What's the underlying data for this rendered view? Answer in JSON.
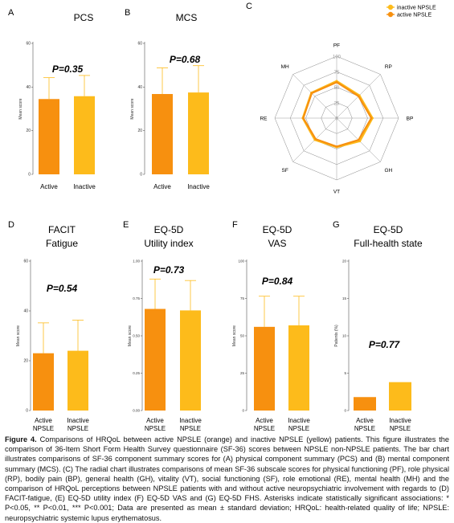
{
  "colors": {
    "active": "#F7900F",
    "inactive": "#FDBB1B",
    "axis": "#555555",
    "grid": "#bbbbbb",
    "error": "#FDBB1B"
  },
  "chart_data": [
    {
      "panel": "A",
      "type": "bar",
      "title": "PCS",
      "ylabel": "Mean score",
      "ylim": [
        0,
        60
      ],
      "yticks": [
        0,
        20,
        40,
        60
      ],
      "categories": [
        "Active",
        "Inactive"
      ],
      "values": [
        34.5,
        35.8
      ],
      "errors": [
        9.8,
        9.5
      ],
      "pvalue": "P=0.35"
    },
    {
      "panel": "B",
      "type": "bar",
      "title": "MCS",
      "ylabel": "Mean score",
      "ylim": [
        0,
        60
      ],
      "yticks": [
        0,
        20,
        40,
        60
      ],
      "categories": [
        "Active",
        "Inactive"
      ],
      "values": [
        36.8,
        37.5
      ],
      "errors": [
        12.0,
        12.3
      ],
      "pvalue": "P=0.68"
    },
    {
      "panel": "C",
      "type": "radar",
      "axes": [
        "PF",
        "RP",
        "BP",
        "GH",
        "VT",
        "SF",
        "RE",
        "MH"
      ],
      "rticks": [
        0,
        25,
        50,
        75,
        100
      ],
      "series": [
        {
          "name": "inactive NPSLE",
          "values": [
            60,
            52,
            58,
            53,
            47,
            50,
            55,
            58
          ]
        },
        {
          "name": "active NPSLE",
          "values": [
            58,
            50,
            56,
            50,
            46,
            48,
            54,
            57
          ]
        }
      ]
    },
    {
      "panel": "D",
      "type": "bar",
      "title": [
        "FACIT",
        "Fatigue"
      ],
      "ylabel": "Mean score",
      "ylim": [
        0,
        60
      ],
      "yticks": [
        0,
        20,
        40,
        60
      ],
      "categories": [
        [
          "Active",
          "NPSLE"
        ],
        [
          "Inactive",
          "NPSLE"
        ]
      ],
      "values": [
        23.0,
        24.0
      ],
      "errors": [
        12.2,
        12.3
      ],
      "pvalue": "P=0.54"
    },
    {
      "panel": "E",
      "type": "bar",
      "title": [
        "EQ-5D",
        "Utility index"
      ],
      "ylabel": "Mean score",
      "ylim": [
        0,
        1
      ],
      "yticks": [
        "0.00",
        "0.25",
        "0.50",
        "0.75",
        "1.00"
      ],
      "categories": [
        [
          "Active",
          "NPSLE"
        ],
        [
          "Inactive",
          "NPSLE"
        ]
      ],
      "values": [
        0.68,
        0.67
      ],
      "errors": [
        0.2,
        0.2
      ],
      "pvalue": "P=0.73"
    },
    {
      "panel": "F",
      "type": "bar",
      "title": [
        "EQ-5D",
        "VAS"
      ],
      "ylabel": "Mean score",
      "ylim": [
        0,
        100
      ],
      "yticks": [
        0,
        25,
        50,
        75,
        100
      ],
      "categories": [
        [
          "Active",
          "NPSLE"
        ],
        [
          "Inactive",
          "NPSLE"
        ]
      ],
      "values": [
        56,
        57
      ],
      "errors": [
        20.5,
        19.5
      ],
      "pvalue": "P=0.84"
    },
    {
      "panel": "G",
      "type": "bar",
      "title": [
        "EQ-5D",
        "Full-health state"
      ],
      "ylabel": "Patients (%)",
      "ylim": [
        0,
        20
      ],
      "yticks": [
        0,
        5,
        10,
        15,
        20
      ],
      "categories": [
        [
          "Active",
          "NPSLE"
        ],
        [
          "Inactive",
          "NPSLE"
        ]
      ],
      "values": [
        1.8,
        3.8
      ],
      "errors": [
        null,
        null
      ],
      "pvalue": "P=0.77"
    }
  ],
  "caption": {
    "label": "Figure 4.",
    "text": "Comparisons of HRQoL between active NPSLE (orange) and inactive NPSLE (yellow) patients. This figure illustrates the comparison of 36-Item Short Form Health Survey questionnaire (SF-36) scores between NPSLE non-NPSLE patients. The bar chart illustrates comparisons of SF-36 component summary scores for (A) physical component summary (PCS) and (B) mental component summary (MCS). (C) The radial chart illustrates comparisons of mean SF-36 subscale scores for physical functioning (PF), role physical (RP), bodily pain (BP), general health (GH), vitality (VT), social functioning (SF), role emotional (RE), mental health (MH) and the comparison of HRQoL perceptions between NPSLE patients with and without active neuropsychiatric involvement with regards to (D) FACIT-fatigue, (E) EQ-5D utility index (F) EQ-5D VAS and (G) EQ-5D FHS. Asterisks indicate statistically significant associations: * P<0.05, ** P<0.01, *** P<0.001; Data are presented as mean ± standard deviation; HRQoL: health-related quality of life; NPSLE: neuropsychiatric systemic lupus erythematosus."
  }
}
